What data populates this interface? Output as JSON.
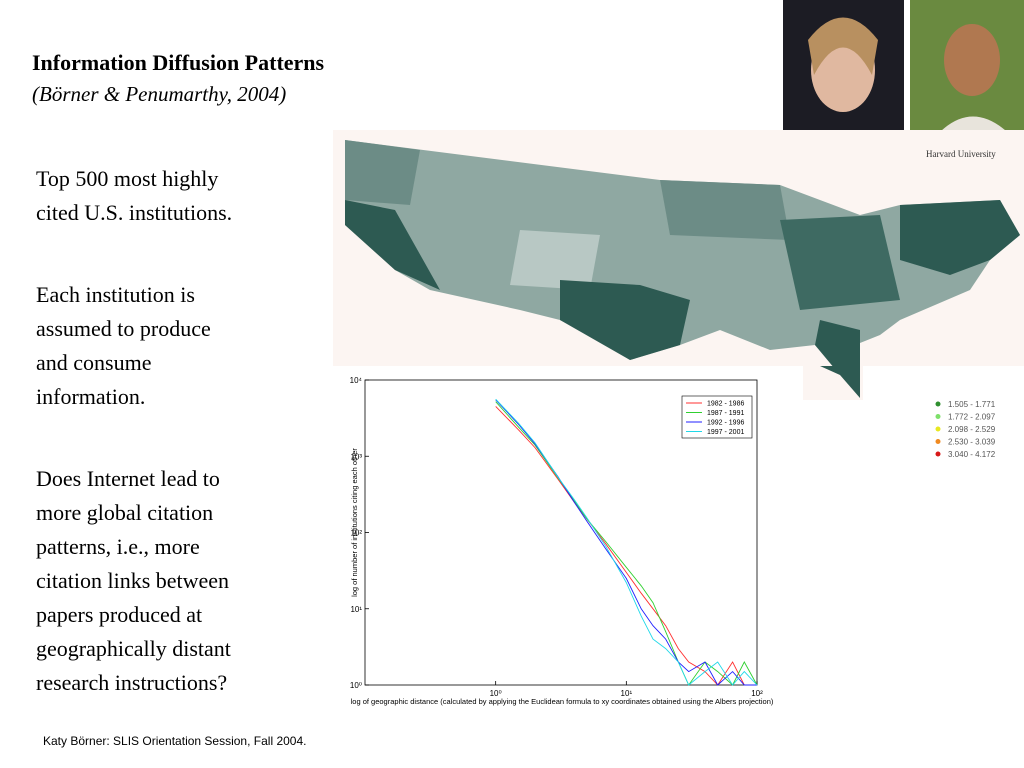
{
  "header": {
    "title": "Information Diffusion Patterns",
    "subtitle": "(Börner & Penumarthy, 2004)"
  },
  "body": {
    "paragraphs": [
      [
        "Top 500 most highly",
        "cited U.S. institutions."
      ],
      [
        "Each institution is",
        "assumed to produce",
        "and consume",
        "information."
      ],
      [
        "Does Internet lead to",
        "more global citation",
        "patterns, i.e., more",
        "citation links between",
        "papers produced at",
        "geographically distant",
        "research instructions?"
      ]
    ]
  },
  "map": {
    "label": "Harvard University",
    "legend": [
      {
        "label": "1.505 - 1.771",
        "color": "#2f8f2f"
      },
      {
        "label": "1.772 - 2.097",
        "color": "#7ee06a"
      },
      {
        "label": "2.098 - 2.529",
        "color": "#e8e820"
      },
      {
        "label": "2.530 - 3.039",
        "color": "#f08a20"
      },
      {
        "label": "3.040 - 4.172",
        "color": "#d81818"
      }
    ]
  },
  "chart_data": {
    "type": "line",
    "x_label": "log of geographic distance (calculated by applying the Euclidean formula to xy coordinates obtained using the Albers projection)",
    "y_label": "log of number of institutions citing each other",
    "xlog": true,
    "ylog": true,
    "xlim": [
      0.1,
      100
    ],
    "ylim": [
      1,
      10000
    ],
    "xticks": [
      {
        "value": 1,
        "label": "10⁰"
      },
      {
        "value": 10,
        "label": "10¹"
      },
      {
        "value": 100,
        "label": "10²"
      }
    ],
    "yticks": [
      {
        "value": 1,
        "label": "10⁰"
      },
      {
        "value": 10,
        "label": "10¹"
      },
      {
        "value": 100,
        "label": "10²"
      },
      {
        "value": 1000,
        "label": "10³"
      },
      {
        "value": 10000,
        "label": "10⁴"
      }
    ],
    "legend_position": "upper right",
    "x": [
      1,
      1.5,
      2,
      3,
      4,
      5,
      7,
      10,
      13,
      16,
      20,
      25,
      30,
      40,
      50,
      65,
      80,
      100
    ],
    "series": [
      {
        "name": "1982 - 1986",
        "color": "#ff3030",
        "values": [
          4500,
          2200,
          1300,
          500,
          250,
          150,
          70,
          30,
          16,
          10,
          6,
          3,
          2,
          1.5,
          1,
          2,
          1,
          1
        ]
      },
      {
        "name": "1987 - 1991",
        "color": "#30d030",
        "values": [
          5200,
          2400,
          1400,
          520,
          260,
          150,
          75,
          35,
          20,
          12,
          5,
          2,
          1,
          2,
          1.5,
          1,
          2,
          1
        ]
      },
      {
        "name": "1992 - 1996",
        "color": "#2020ff",
        "values": [
          5500,
          2600,
          1450,
          540,
          250,
          140,
          60,
          25,
          10,
          6,
          4,
          2,
          1.5,
          2,
          1,
          1.5,
          1,
          1
        ]
      },
      {
        "name": "1997 - 2001",
        "color": "#20d8e8",
        "values": [
          5600,
          2700,
          1500,
          530,
          270,
          155,
          65,
          22,
          8,
          4,
          3,
          2,
          1,
          1.5,
          2,
          1,
          1.5,
          1
        ]
      }
    ]
  },
  "footer": "Katy Börner: SLIS Orientation Session, Fall 2004."
}
